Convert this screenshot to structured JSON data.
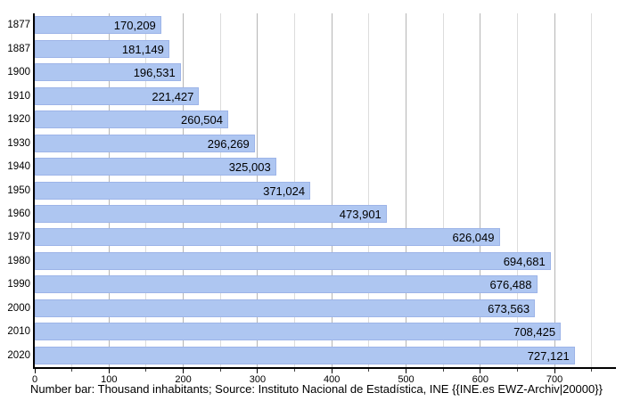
{
  "chart_data": {
    "type": "bar",
    "orientation": "horizontal",
    "title": "",
    "categories": [
      "1877",
      "1887",
      "1900",
      "1910",
      "1920",
      "1930",
      "1940",
      "1950",
      "1960",
      "1970",
      "1980",
      "1990",
      "2000",
      "2010",
      "2020"
    ],
    "values": [
      170209,
      181149,
      196531,
      221427,
      260504,
      296269,
      325003,
      371024,
      473901,
      626049,
      694681,
      676488,
      673563,
      708425,
      727121
    ],
    "value_labels": [
      "170,209",
      "181,149",
      "196,531",
      "221,427",
      "260,504",
      "296,269",
      "325,003",
      "371,024",
      "473,901",
      "626,049",
      "694,681",
      "676,488",
      "673,563",
      "708,425",
      "727,121"
    ],
    "value_unit": "inhabitants",
    "axis_unit": "thousand inhabitants",
    "xlabel": "",
    "ylabel": "",
    "x_ticks": [
      0,
      100,
      200,
      300,
      400,
      500,
      600,
      700
    ],
    "x_minor_tick_every": 50,
    "x_minor_tick_max": 750,
    "xlim": [
      0,
      783
    ],
    "grid": "vertical; major every 100, minor every 50",
    "legend": "none",
    "caption": "Number bar: Thousand inhabitants; Source: Instituto Nacional de Estadística, INE {{INE.es EWZ-Archiv|20000}}",
    "colors": {
      "bar_fill": "#aec6f1",
      "bar_border": "#9db4e8",
      "grid_major": "#b5b5b5",
      "grid_minor": "#dcdcdc",
      "axis": "#000000",
      "text": "#000000",
      "background": "#ffffff"
    }
  }
}
